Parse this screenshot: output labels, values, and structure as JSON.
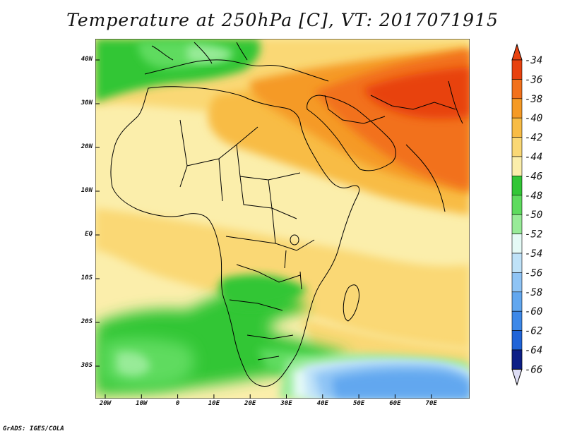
{
  "title": "Temperature at 250hPa [C], VT: 2017071915",
  "credit": "GrADS: IGES/COLA",
  "map": {
    "lon_labels": [
      "20W",
      "10W",
      "0",
      "10E",
      "20E",
      "30E",
      "40E",
      "50E",
      "60E",
      "70E"
    ],
    "lat_labels": [
      "40N",
      "30N",
      "20N",
      "10N",
      "EQ",
      "10S",
      "20S",
      "30S"
    ]
  },
  "colorbar": {
    "labels": [
      "-34",
      "-36",
      "-38",
      "-40",
      "-42",
      "-44",
      "-46",
      "-48",
      "-50",
      "-52",
      "-54",
      "-56",
      "-58",
      "-60",
      "-62",
      "-64",
      "-66"
    ],
    "colors": [
      "#e8420f",
      "#f2711b",
      "#f59a25",
      "#f8bc45",
      "#fad875",
      "#fbeeab",
      "#32c636",
      "#5edb5e",
      "#98eb98",
      "#e5faf6",
      "#bfe2f8",
      "#8fc4f5",
      "#62a7ef",
      "#3d88e8",
      "#2064d8",
      "#1444b4",
      "#0c1e86"
    ],
    "over_color": "#e8420f",
    "under_color": "#ddddf5"
  }
}
